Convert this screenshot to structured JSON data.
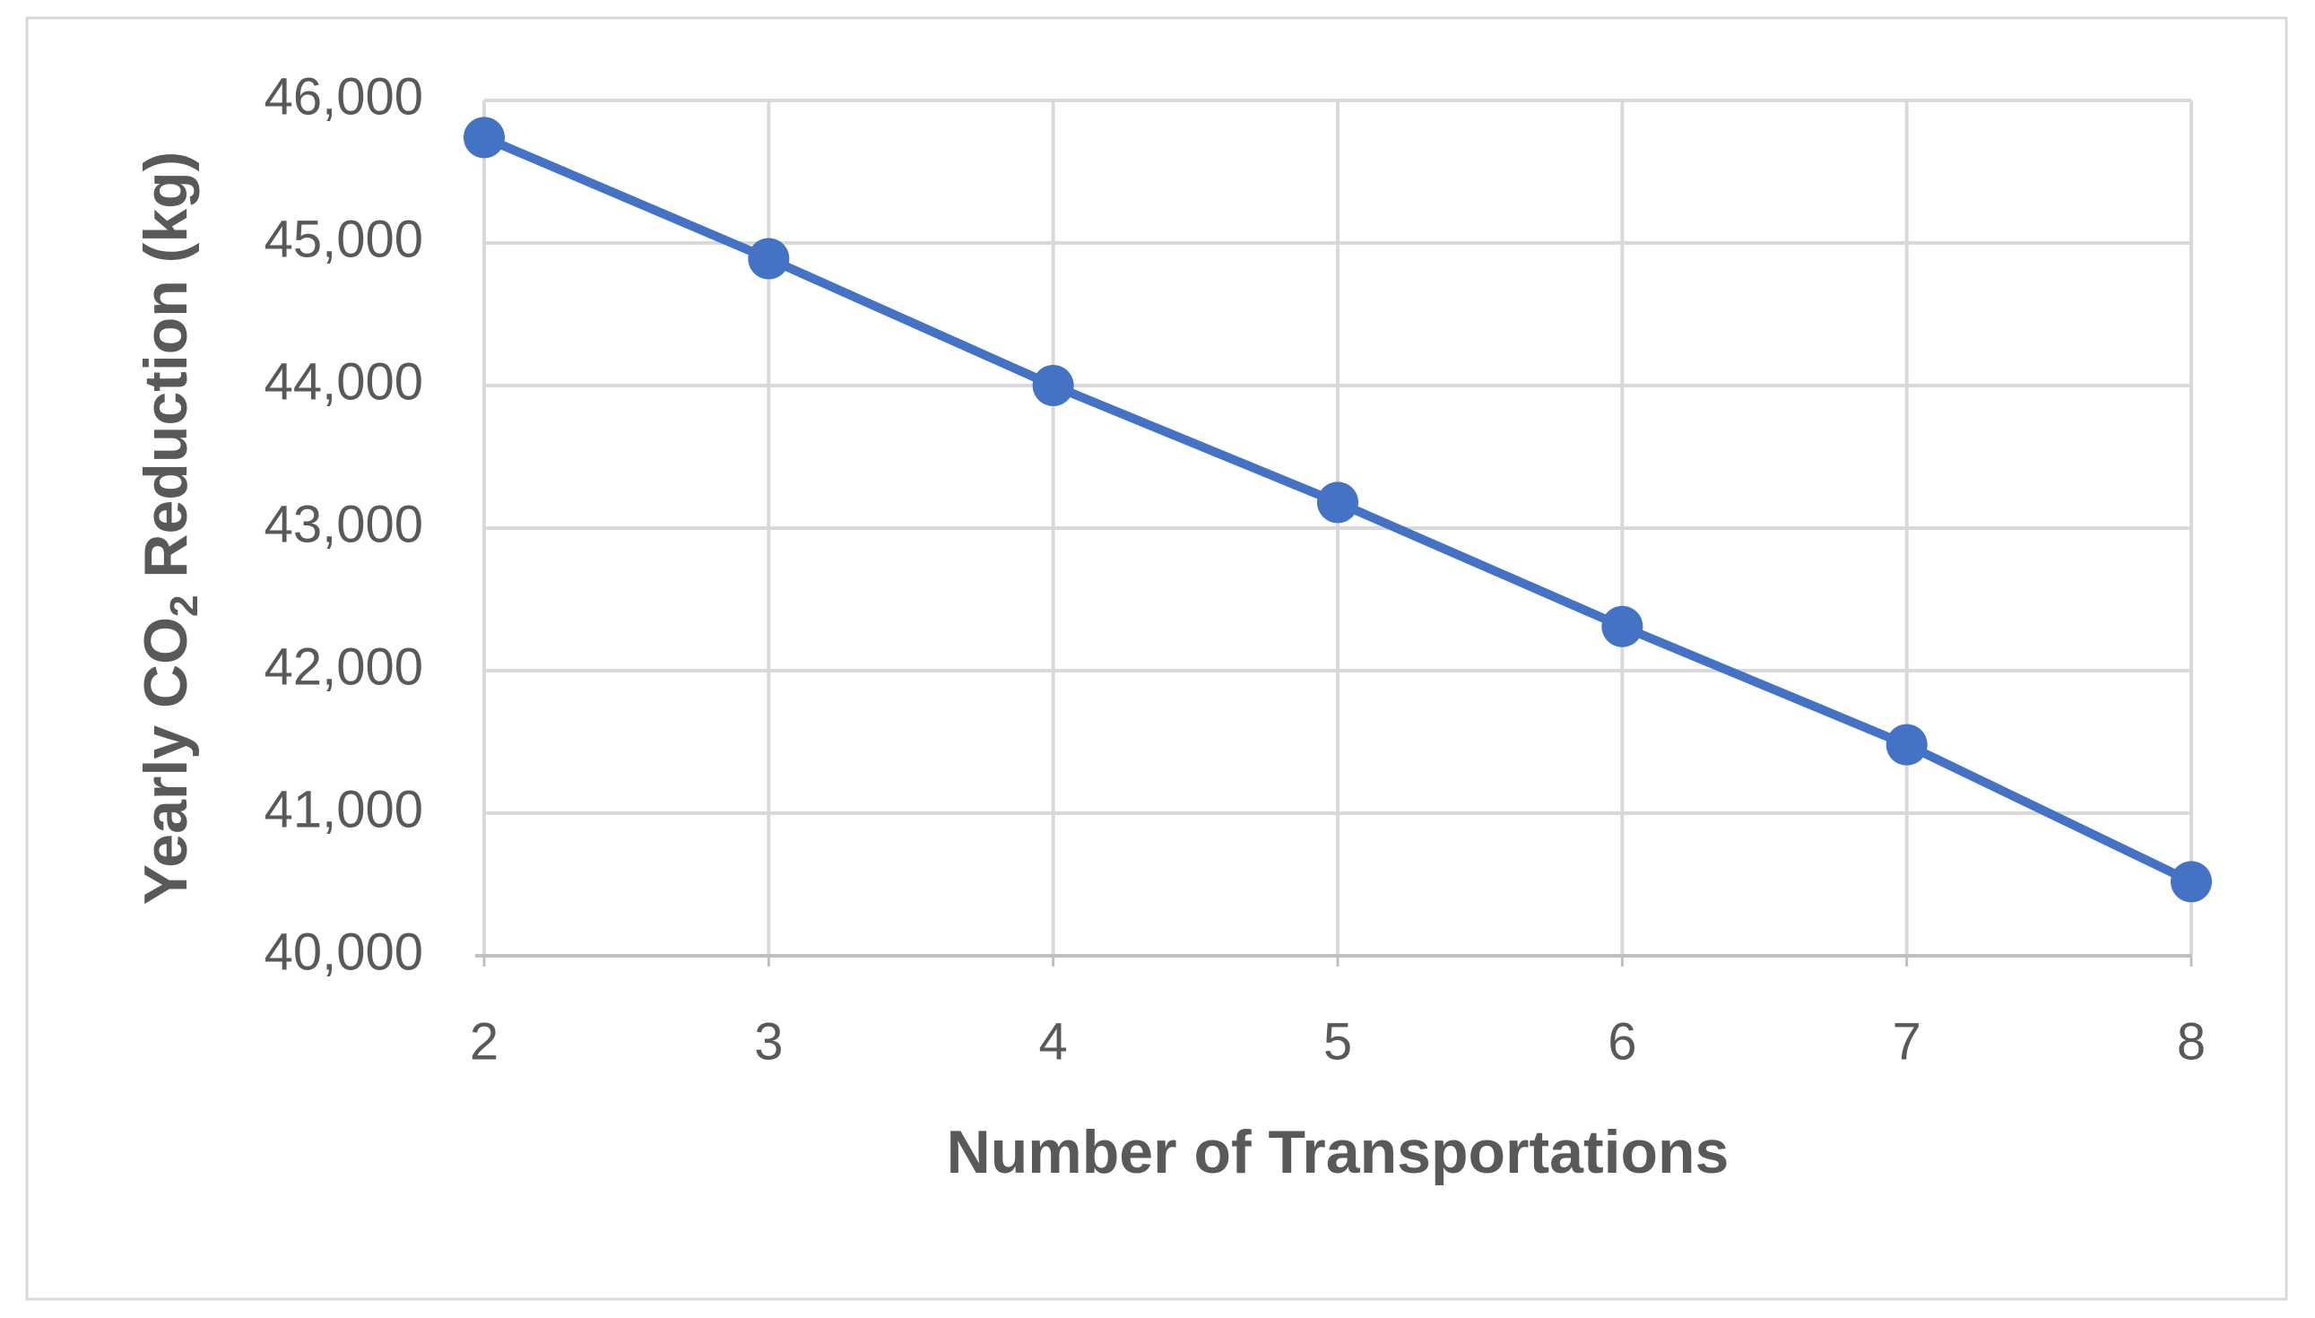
{
  "chart_data": {
    "type": "line",
    "x_label": "Number of Transportations",
    "y_label_parts": [
      "Yearly CO",
      "2",
      " Reduction (kg)"
    ],
    "x": [
      2,
      3,
      4,
      5,
      6,
      7,
      8
    ],
    "values": [
      45740,
      44890,
      44000,
      43180,
      42310,
      41480,
      40520
    ],
    "color": "#4472c4",
    "xlim": [
      2,
      8
    ],
    "xticks": [
      2,
      3,
      4,
      5,
      6,
      7,
      8
    ],
    "ylim": [
      40000,
      46000
    ],
    "yticks": [
      {
        "value": 40000,
        "label": "40,000"
      },
      {
        "value": 41000,
        "label": "41,000"
      },
      {
        "value": 42000,
        "label": "42,000"
      },
      {
        "value": 43000,
        "label": "43,000"
      },
      {
        "value": 44000,
        "label": "44,000"
      },
      {
        "value": 45000,
        "label": "45,000"
      },
      {
        "value": 46000,
        "label": "46,000"
      }
    ],
    "grid": true
  }
}
